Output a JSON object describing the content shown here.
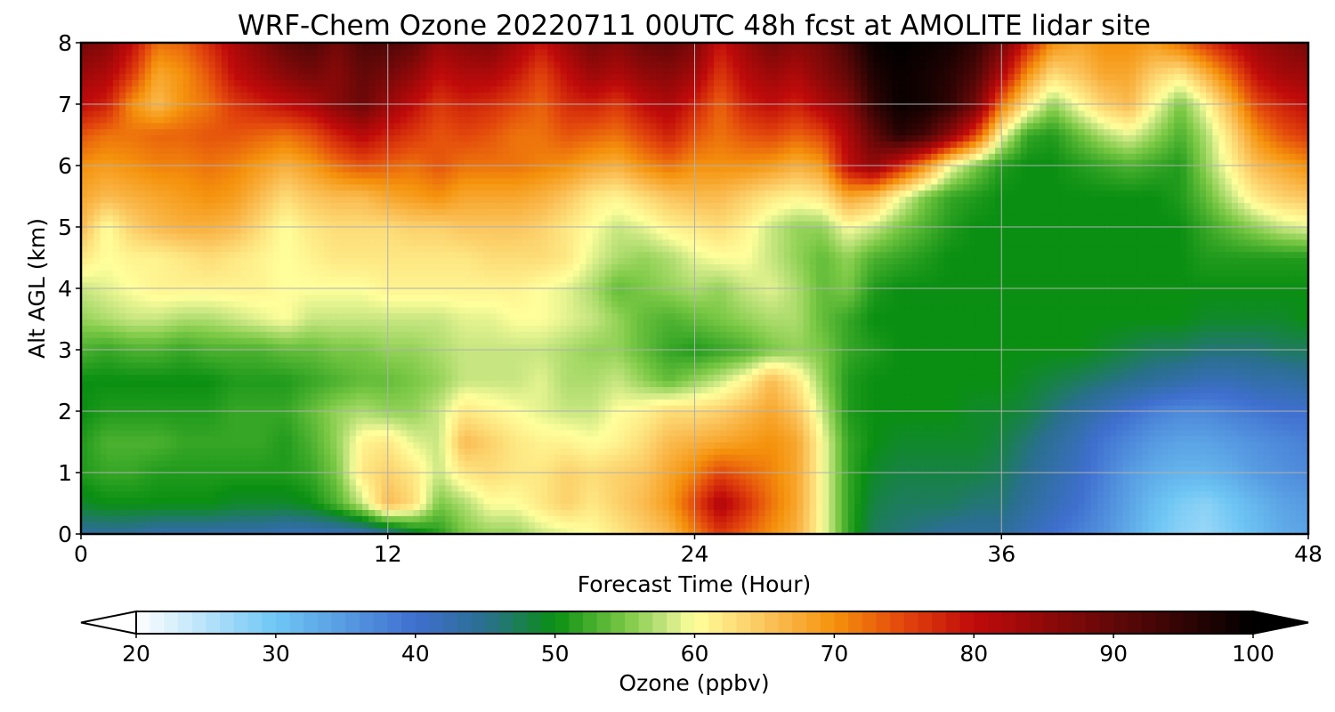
{
  "chart_data": {
    "type": "heatmap",
    "title": "WRF-Chem Ozone  20220711 00UTC 48h fcst at AMOLITE lidar site",
    "xlabel": "Forecast Time (Hour)",
    "ylabel": "Alt AGL (km)",
    "xlim": [
      0,
      48
    ],
    "ylim": [
      0,
      8
    ],
    "xticks": [
      "0",
      "12",
      "24",
      "36",
      "48"
    ],
    "yticks": [
      "0",
      "1",
      "2",
      "3",
      "4",
      "5",
      "6",
      "7",
      "8"
    ],
    "grid": true,
    "colorbar": {
      "label": "Ozone  (ppbv)",
      "range": [
        20,
        100
      ],
      "ticks": [
        "20",
        "30",
        "40",
        "50",
        "60",
        "70",
        "80",
        "90",
        "100"
      ],
      "extend": "both",
      "stops": [
        {
          "v": 20,
          "c": "#ffffff"
        },
        {
          "v": 30,
          "c": "#6ec6f4"
        },
        {
          "v": 40,
          "c": "#3f6fcf"
        },
        {
          "v": 45,
          "c": "#2a6f8f"
        },
        {
          "v": 50,
          "c": "#0a8f12"
        },
        {
          "v": 55,
          "c": "#79c844"
        },
        {
          "v": 58,
          "c": "#c7e681"
        },
        {
          "v": 60,
          "c": "#ffff9c"
        },
        {
          "v": 65,
          "c": "#fbc55e"
        },
        {
          "v": 70,
          "c": "#f5920c"
        },
        {
          "v": 75,
          "c": "#e2450c"
        },
        {
          "v": 80,
          "c": "#c00a0a"
        },
        {
          "v": 90,
          "c": "#620808"
        },
        {
          "v": 100,
          "c": "#000000"
        }
      ]
    },
    "x": [
      0,
      1,
      2,
      3,
      4,
      5,
      6,
      7,
      8,
      9,
      10,
      11,
      12,
      13,
      14,
      15,
      16,
      17,
      18,
      19,
      20,
      21,
      22,
      23,
      24,
      25,
      26,
      27,
      28,
      29,
      30,
      31,
      32,
      33,
      34,
      35,
      36,
      37,
      38,
      39,
      40,
      41,
      42,
      43,
      44,
      45,
      46,
      47,
      48
    ],
    "y": [
      0,
      0.5,
      1,
      1.5,
      2,
      2.5,
      3,
      3.5,
      4,
      4.5,
      5,
      5.5,
      6,
      6.5,
      7,
      7.5,
      8
    ],
    "z": [
      [
        44,
        44,
        44,
        43,
        43,
        43,
        43,
        43,
        42,
        42,
        42,
        42,
        44,
        48,
        51,
        55,
        56,
        56,
        58,
        59,
        60,
        62,
        64,
        66,
        71,
        76,
        73,
        70,
        67,
        60,
        52,
        47,
        46,
        45,
        44,
        44,
        44,
        42,
        40,
        38,
        36,
        33,
        30,
        28,
        27,
        29,
        31,
        33,
        34
      ],
      [
        49,
        50,
        50,
        50,
        50,
        50,
        49,
        49,
        49,
        50,
        53,
        58,
        66,
        63,
        55,
        57,
        60,
        60,
        62,
        64,
        62,
        64,
        66,
        69,
        75,
        82,
        77,
        72,
        68,
        60,
        52,
        48,
        47,
        47,
        47,
        46,
        46,
        44,
        42,
        40,
        37,
        34,
        31,
        29,
        28,
        30,
        32,
        34,
        35
      ],
      [
        51,
        52,
        52,
        51,
        51,
        51,
        51,
        51,
        51,
        52,
        55,
        62,
        64,
        62,
        58,
        62,
        63,
        62,
        62,
        64,
        63,
        64,
        65,
        68,
        71,
        75,
        73,
        71,
        68,
        60,
        52,
        49,
        48,
        48,
        48,
        48,
        47,
        45,
        43,
        41,
        38,
        35,
        33,
        32,
        32,
        33,
        35,
        36,
        37
      ],
      [
        51,
        53,
        53,
        53,
        52,
        52,
        52,
        52,
        51,
        53,
        56,
        61,
        62,
        59,
        58,
        66,
        64,
        62,
        61,
        61,
        60,
        61,
        63,
        66,
        67,
        68,
        69,
        70,
        68,
        60,
        52,
        50,
        49,
        49,
        49,
        49,
        48,
        46,
        44,
        42,
        39,
        37,
        35,
        34,
        34,
        35,
        36,
        37,
        38
      ],
      [
        50,
        51,
        51,
        51,
        51,
        51,
        52,
        52,
        52,
        54,
        56,
        57,
        56,
        56,
        58,
        62,
        61,
        60,
        59,
        58,
        58,
        60,
        61,
        63,
        63,
        64,
        66,
        68,
        65,
        58,
        51,
        50,
        50,
        50,
        50,
        49,
        49,
        48,
        46,
        44,
        42,
        40,
        38,
        37,
        37,
        38,
        39,
        40,
        40
      ],
      [
        50,
        50,
        50,
        50,
        50,
        50,
        51,
        51,
        51,
        52,
        53,
        54,
        54,
        55,
        56,
        58,
        58,
        58,
        59,
        57,
        57,
        58,
        56,
        54,
        56,
        58,
        61,
        66,
        62,
        56,
        51,
        50,
        50,
        50,
        50,
        50,
        50,
        49,
        48,
        47,
        46,
        45,
        44,
        43,
        42,
        42,
        43,
        43,
        44
      ],
      [
        53,
        52,
        53,
        53,
        52,
        53,
        53,
        53,
        54,
        54,
        55,
        55,
        56,
        56,
        57,
        58,
        58,
        58,
        58,
        57,
        56,
        56,
        54,
        52,
        51,
        52,
        53,
        55,
        56,
        55,
        52,
        51,
        50,
        50,
        50,
        50,
        50,
        50,
        50,
        50,
        49,
        48,
        47,
        47,
        46,
        46,
        46,
        47,
        47
      ],
      [
        56,
        57,
        58,
        58,
        57,
        57,
        58,
        59,
        60,
        58,
        58,
        58,
        58,
        58,
        58,
        59,
        59,
        60,
        60,
        59,
        58,
        56,
        54,
        53,
        54,
        55,
        56,
        57,
        57,
        54,
        52,
        50,
        50,
        50,
        50,
        50,
        50,
        50,
        50,
        50,
        50,
        50,
        50,
        50,
        49,
        49,
        49,
        49,
        50
      ],
      [
        58,
        59,
        60,
        61,
        61,
        61,
        61,
        61,
        60,
        60,
        60,
        60,
        61,
        61,
        61,
        61,
        61,
        61,
        60,
        59,
        57,
        54,
        55,
        56,
        57,
        56,
        58,
        59,
        57,
        54,
        55,
        51,
        50,
        50,
        50,
        50,
        50,
        50,
        50,
        50,
        50,
        50,
        50,
        50,
        50,
        50,
        50,
        50,
        50
      ],
      [
        62,
        60,
        61,
        61,
        62,
        63,
        62,
        61,
        60,
        61,
        62,
        62,
        62,
        62,
        62,
        62,
        63,
        63,
        63,
        62,
        59,
        57,
        56,
        57,
        59,
        60,
        60,
        58,
        56,
        54,
        56,
        53,
        52,
        51,
        50,
        50,
        50,
        50,
        50,
        50,
        50,
        50,
        50,
        50,
        51,
        51,
        51,
        51,
        51
      ],
      [
        66,
        60,
        64,
        66,
        67,
        67,
        66,
        63,
        60,
        62,
        63,
        63,
        63,
        64,
        64,
        65,
        65,
        65,
        64,
        62,
        60,
        58,
        59,
        61,
        62,
        63,
        61,
        58,
        56,
        56,
        60,
        58,
        55,
        53,
        51,
        50,
        50,
        50,
        50,
        50,
        50,
        50,
        50,
        50,
        52,
        54,
        56,
        58,
        59
      ],
      [
        68,
        66,
        67,
        68,
        69,
        70,
        69,
        66,
        63,
        65,
        66,
        66,
        68,
        69,
        70,
        68,
        68,
        68,
        67,
        65,
        62,
        61,
        63,
        65,
        66,
        66,
        64,
        62,
        61,
        62,
        68,
        66,
        60,
        55,
        52,
        51,
        50,
        50,
        50,
        50,
        50,
        50,
        50,
        51,
        54,
        58,
        62,
        64,
        65
      ],
      [
        70,
        69,
        70,
        71,
        71,
        72,
        71,
        69,
        67,
        69,
        72,
        74,
        73,
        72,
        74,
        72,
        72,
        72,
        71,
        70,
        68,
        67,
        70,
        72,
        70,
        70,
        70,
        69,
        67,
        69,
        80,
        85,
        78,
        70,
        60,
        55,
        51,
        50,
        50,
        51,
        52,
        53,
        52,
        51,
        56,
        61,
        66,
        68,
        70
      ],
      [
        74,
        72,
        72,
        73,
        73,
        74,
        74,
        73,
        72,
        74,
        78,
        81,
        78,
        76,
        74,
        75,
        74,
        72,
        72,
        74,
        73,
        72,
        75,
        78,
        74,
        72,
        74,
        75,
        73,
        75,
        82,
        90,
        96,
        93,
        85,
        75,
        60,
        52,
        51,
        54,
        57,
        59,
        56,
        53,
        57,
        63,
        70,
        74,
        76
      ],
      [
        80,
        78,
        70,
        66,
        70,
        72,
        76,
        78,
        80,
        82,
        86,
        89,
        84,
        80,
        76,
        78,
        77,
        75,
        73,
        77,
        78,
        76,
        80,
        82,
        78,
        73,
        78,
        80,
        78,
        82,
        86,
        95,
        99,
        98,
        95,
        88,
        72,
        62,
        56,
        60,
        64,
        66,
        60,
        55,
        60,
        67,
        75,
        78,
        80
      ],
      [
        84,
        82,
        76,
        68,
        70,
        74,
        80,
        83,
        86,
        88,
        86,
        90,
        88,
        85,
        80,
        82,
        82,
        79,
        75,
        80,
        84,
        82,
        85,
        86,
        83,
        76,
        81,
        84,
        82,
        86,
        90,
        97,
        99,
        98,
        96,
        92,
        82,
        70,
        63,
        65,
        68,
        68,
        64,
        62,
        67,
        73,
        80,
        83,
        84
      ],
      [
        88,
        86,
        80,
        72,
        73,
        77,
        82,
        86,
        90,
        92,
        88,
        92,
        92,
        90,
        84,
        86,
        87,
        83,
        79,
        84,
        88,
        86,
        89,
        90,
        87,
        79,
        84,
        88,
        86,
        88,
        93,
        99,
        100,
        99,
        98,
        95,
        88,
        78,
        70,
        68,
        70,
        70,
        69,
        72,
        76,
        80,
        84,
        86,
        88
      ]
    ]
  }
}
